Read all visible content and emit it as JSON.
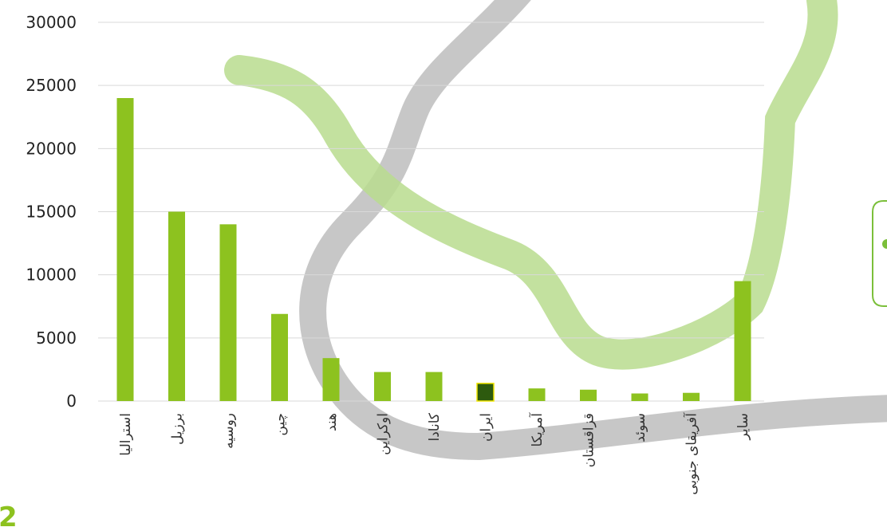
{
  "page": {
    "page_number": "2"
  },
  "chart_data": {
    "type": "bar",
    "categories": [
      "استرالیا",
      "برزیل",
      "روسیه",
      "چین",
      "هند",
      "اوکراین",
      "کانادا",
      "ایران",
      "آمریکا",
      "قزاقستان",
      "سوئد",
      "آفریقای جنوبی",
      "سایر"
    ],
    "values": [
      24000,
      15000,
      14000,
      6900,
      3400,
      2300,
      2300,
      1400,
      1000,
      900,
      600,
      650,
      9500
    ],
    "highlight_index": 7,
    "ylim": [
      0,
      30000
    ],
    "yticks": [
      0,
      5000,
      10000,
      15000,
      20000,
      25000,
      30000
    ],
    "grid": true,
    "colors": {
      "bar": "#8dc21f",
      "highlight_bar": "#2d5a0e",
      "highlight_outline": "#f2e600",
      "gridline": "#d9d9d9",
      "deco_green": "#b9dc8e",
      "deco_gray": "#bdbdbd",
      "deco_callout": "#7bbf3a"
    }
  }
}
